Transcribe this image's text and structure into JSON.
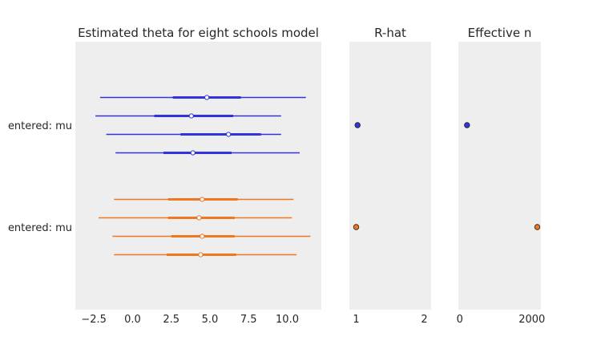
{
  "chart_data": {
    "type": "forest",
    "panels": [
      {
        "title": "Estimated theta for eight schools model",
        "xlim": [
          -3.7,
          12.2
        ],
        "xticks": [
          -2.5,
          0.0,
          2.5,
          5.0,
          7.5,
          10.0
        ],
        "xtick_labels": [
          "−2.5",
          "0.0",
          "2.5",
          "5.0",
          "7.5",
          "10.0"
        ]
      },
      {
        "title": "R-hat",
        "xlim": [
          0.9,
          2.1
        ],
        "xticks": [
          1,
          2
        ],
        "xtick_labels": [
          "1",
          "2"
        ]
      },
      {
        "title": "Effective n",
        "xlim": [
          -40,
          2250
        ],
        "xticks": [
          0,
          2000
        ],
        "xtick_labels": [
          "0",
          "2000"
        ]
      }
    ],
    "ylabels": [
      "entered: mu",
      "entered: mu"
    ],
    "series": [
      {
        "color": "#3333dd",
        "chains": [
          {
            "low": -2.1,
            "q25": 2.6,
            "median": 4.8,
            "q75": 7.0,
            "high": 11.2
          },
          {
            "low": -2.4,
            "q25": 1.4,
            "median": 3.8,
            "q75": 6.5,
            "high": 9.6
          },
          {
            "low": -1.7,
            "q25": 3.1,
            "median": 6.2,
            "q75": 8.3,
            "high": 9.6
          },
          {
            "low": -1.1,
            "q25": 2.0,
            "median": 3.9,
            "q75": 6.4,
            "high": 10.8
          }
        ],
        "rhat": 1.02,
        "ess": 200
      },
      {
        "color": "#ee7722",
        "chains": [
          {
            "low": -1.2,
            "q25": 2.3,
            "median": 4.5,
            "q75": 6.8,
            "high": 10.4
          },
          {
            "low": -2.2,
            "q25": 2.3,
            "median": 4.3,
            "q75": 6.6,
            "high": 10.3
          },
          {
            "low": -1.3,
            "q25": 2.5,
            "median": 4.5,
            "q75": 6.6,
            "high": 11.5
          },
          {
            "low": -1.2,
            "q25": 2.2,
            "median": 4.4,
            "q75": 6.7,
            "high": 10.6
          }
        ],
        "rhat": 1.0,
        "ess": 2150
      }
    ]
  }
}
